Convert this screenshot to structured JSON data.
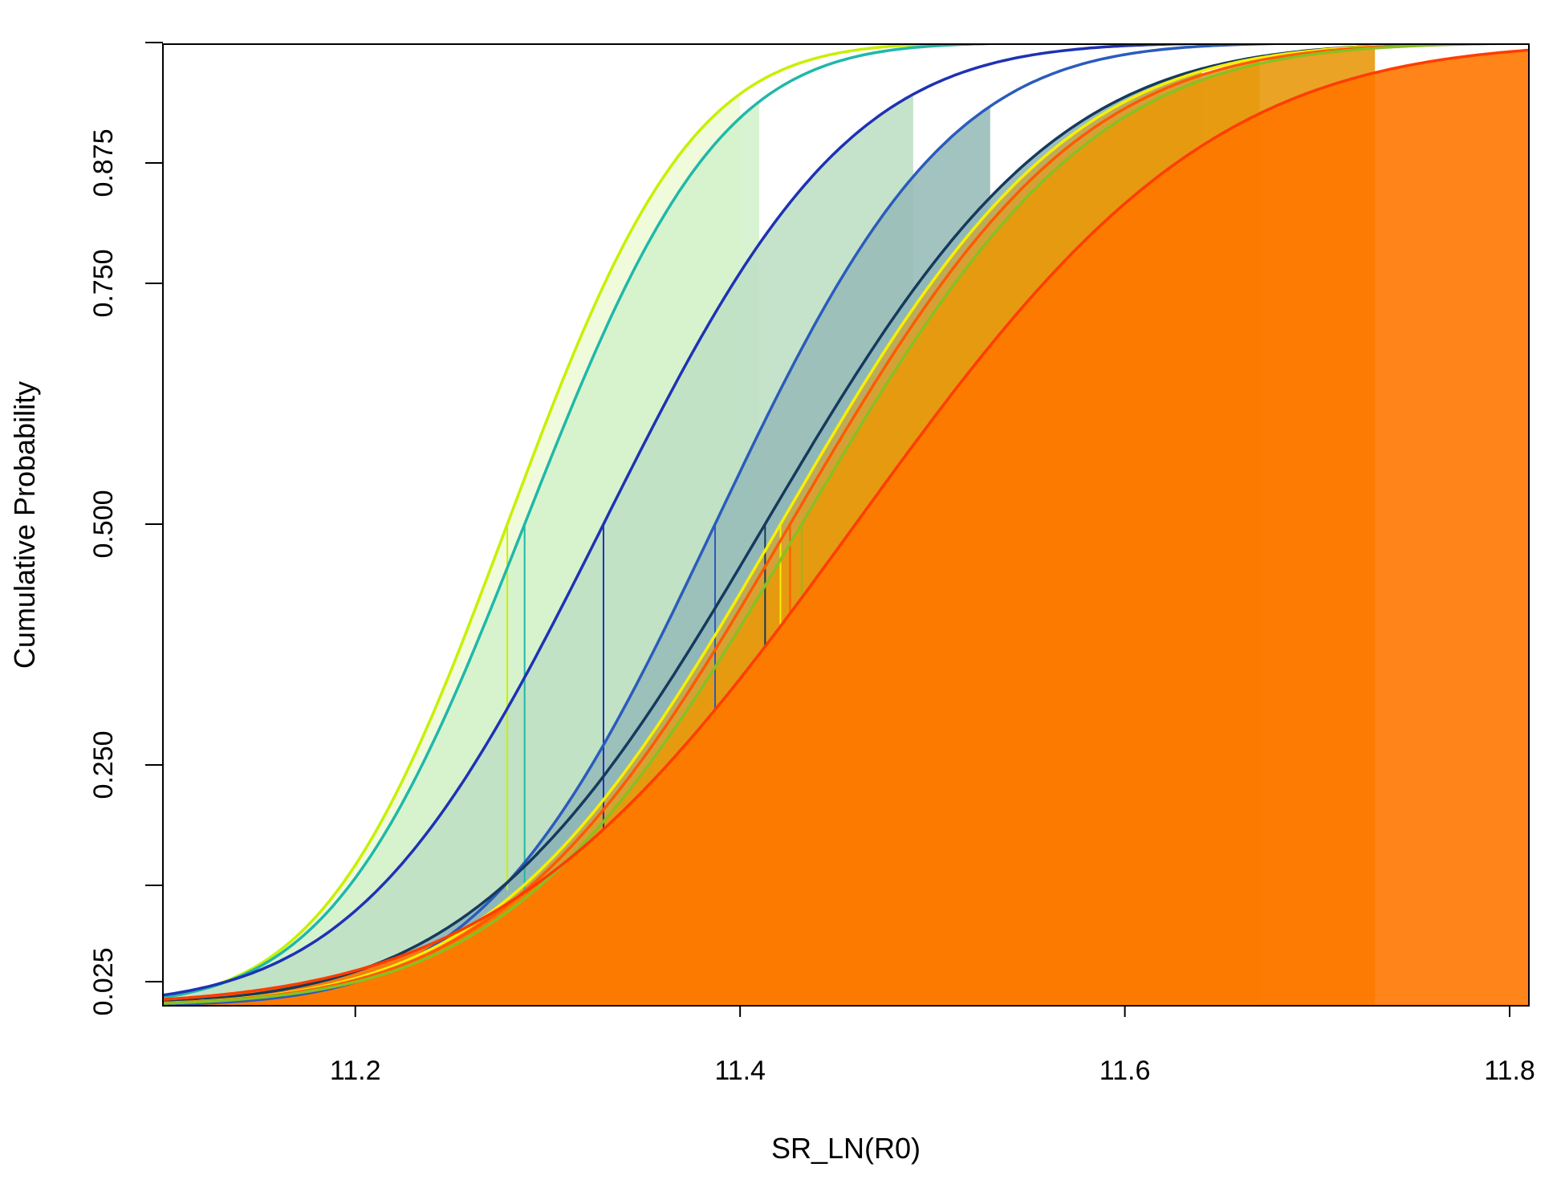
{
  "chart_data": {
    "type": "line",
    "title": "",
    "xlabel": "SR_LN(R0)",
    "ylabel": "Cumulative Probability",
    "xlim": [
      11.1,
      11.81
    ],
    "ylim": [
      0.0,
      1.0
    ],
    "x_ticks": [
      "11.2",
      "11.4",
      "11.6",
      "11.8"
    ],
    "x_tick_values": [
      11.2,
      11.4,
      11.6,
      11.8
    ],
    "y_ticks": [
      "0.025",
      "0.250",
      "0.500",
      "0.750",
      "0.875"
    ],
    "y_tick_values": [
      0.025,
      0.25,
      0.5,
      0.75,
      0.875
    ],
    "y_minor_ticks": [
      0.125,
      1.0
    ],
    "grid": false,
    "legend": "none",
    "series": [
      {
        "median": 11.279,
        "sd": 0.075,
        "line_color": "#c8f000",
        "fill_color": "#eefbd8",
        "fill_right": 11.4
      },
      {
        "median": 11.288,
        "sd": 0.079,
        "line_color": "#1fb8a8",
        "fill_color": "#d4f2cc",
        "fill_right": 11.41
      },
      {
        "median": 11.329,
        "sd": 0.1,
        "line_color": "#1e32b4",
        "fill_color": "#bfe0c4",
        "fill_right": 11.49
      },
      {
        "median": 11.387,
        "sd": 0.095,
        "line_color": "#2a5cbc",
        "fill_color": "#98bdb8",
        "fill_right": 11.53
      },
      {
        "median": 11.413,
        "sd": 0.118,
        "line_color": "#163a5c",
        "fill_color": "#8fb6b8",
        "fill_right": 11.64
      },
      {
        "median": 11.421,
        "sd": 0.116,
        "line_color": "#f6f000",
        "fill_color": "#c4a850",
        "fill_right": 11.64
      },
      {
        "median": 11.426,
        "sd": 0.117,
        "line_color": "#ff5a00",
        "fill_color": "#d8a030",
        "fill_right": 11.67
      },
      {
        "median": 11.432,
        "sd": 0.118,
        "line_color": "#88c020",
        "fill_color": "#e8990c",
        "fill_right": 11.73
      },
      {
        "median": 11.46,
        "sd": 0.145,
        "line_color": "#ff3c00",
        "fill_color": "#ff7700",
        "fill_right": 11.81
      }
    ]
  }
}
